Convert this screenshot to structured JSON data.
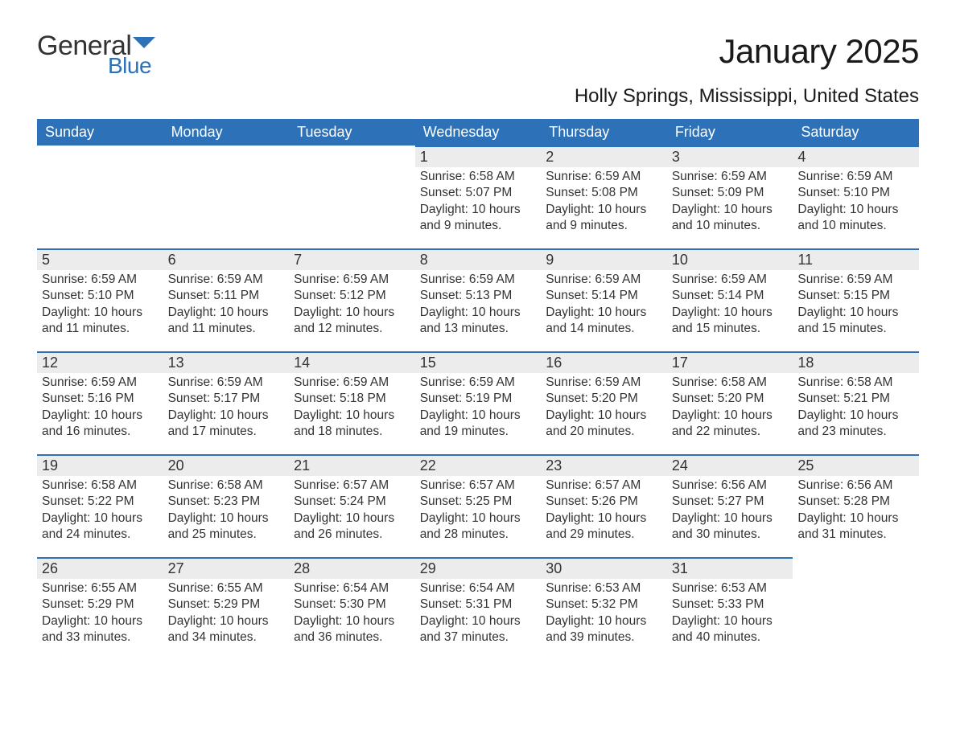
{
  "brand": {
    "word1": "General",
    "word2": "Blue",
    "accent": "#2d72b8"
  },
  "title": "January 2025",
  "location": "Holly Springs, Mississippi, United States",
  "colors": {
    "header_bg": "#2d72b8",
    "header_text": "#ffffff",
    "daynum_bg": "#ececec",
    "daynum_border": "#2d72b8",
    "body_text": "#333333",
    "page_bg": "#ffffff"
  },
  "typography": {
    "title_fontsize": 42,
    "location_fontsize": 24,
    "dow_fontsize": 18,
    "body_fontsize": 15.5
  },
  "layout": {
    "columns": 7,
    "rows": 5,
    "first_weekday": "Sunday",
    "leading_blanks": 3
  },
  "weekdays": [
    "Sunday",
    "Monday",
    "Tuesday",
    "Wednesday",
    "Thursday",
    "Friday",
    "Saturday"
  ],
  "labels": {
    "sunrise": "Sunrise:",
    "sunset": "Sunset:",
    "daylight": "Daylight:"
  },
  "days": [
    {
      "n": 1,
      "sunrise": "6:58 AM",
      "sunset": "5:07 PM",
      "daylight": "10 hours and 9 minutes."
    },
    {
      "n": 2,
      "sunrise": "6:59 AM",
      "sunset": "5:08 PM",
      "daylight": "10 hours and 9 minutes."
    },
    {
      "n": 3,
      "sunrise": "6:59 AM",
      "sunset": "5:09 PM",
      "daylight": "10 hours and 10 minutes."
    },
    {
      "n": 4,
      "sunrise": "6:59 AM",
      "sunset": "5:10 PM",
      "daylight": "10 hours and 10 minutes."
    },
    {
      "n": 5,
      "sunrise": "6:59 AM",
      "sunset": "5:10 PM",
      "daylight": "10 hours and 11 minutes."
    },
    {
      "n": 6,
      "sunrise": "6:59 AM",
      "sunset": "5:11 PM",
      "daylight": "10 hours and 11 minutes."
    },
    {
      "n": 7,
      "sunrise": "6:59 AM",
      "sunset": "5:12 PM",
      "daylight": "10 hours and 12 minutes."
    },
    {
      "n": 8,
      "sunrise": "6:59 AM",
      "sunset": "5:13 PM",
      "daylight": "10 hours and 13 minutes."
    },
    {
      "n": 9,
      "sunrise": "6:59 AM",
      "sunset": "5:14 PM",
      "daylight": "10 hours and 14 minutes."
    },
    {
      "n": 10,
      "sunrise": "6:59 AM",
      "sunset": "5:14 PM",
      "daylight": "10 hours and 15 minutes."
    },
    {
      "n": 11,
      "sunrise": "6:59 AM",
      "sunset": "5:15 PM",
      "daylight": "10 hours and 15 minutes."
    },
    {
      "n": 12,
      "sunrise": "6:59 AM",
      "sunset": "5:16 PM",
      "daylight": "10 hours and 16 minutes."
    },
    {
      "n": 13,
      "sunrise": "6:59 AM",
      "sunset": "5:17 PM",
      "daylight": "10 hours and 17 minutes."
    },
    {
      "n": 14,
      "sunrise": "6:59 AM",
      "sunset": "5:18 PM",
      "daylight": "10 hours and 18 minutes."
    },
    {
      "n": 15,
      "sunrise": "6:59 AM",
      "sunset": "5:19 PM",
      "daylight": "10 hours and 19 minutes."
    },
    {
      "n": 16,
      "sunrise": "6:59 AM",
      "sunset": "5:20 PM",
      "daylight": "10 hours and 20 minutes."
    },
    {
      "n": 17,
      "sunrise": "6:58 AM",
      "sunset": "5:20 PM",
      "daylight": "10 hours and 22 minutes."
    },
    {
      "n": 18,
      "sunrise": "6:58 AM",
      "sunset": "5:21 PM",
      "daylight": "10 hours and 23 minutes."
    },
    {
      "n": 19,
      "sunrise": "6:58 AM",
      "sunset": "5:22 PM",
      "daylight": "10 hours and 24 minutes."
    },
    {
      "n": 20,
      "sunrise": "6:58 AM",
      "sunset": "5:23 PM",
      "daylight": "10 hours and 25 minutes."
    },
    {
      "n": 21,
      "sunrise": "6:57 AM",
      "sunset": "5:24 PM",
      "daylight": "10 hours and 26 minutes."
    },
    {
      "n": 22,
      "sunrise": "6:57 AM",
      "sunset": "5:25 PM",
      "daylight": "10 hours and 28 minutes."
    },
    {
      "n": 23,
      "sunrise": "6:57 AM",
      "sunset": "5:26 PM",
      "daylight": "10 hours and 29 minutes."
    },
    {
      "n": 24,
      "sunrise": "6:56 AM",
      "sunset": "5:27 PM",
      "daylight": "10 hours and 30 minutes."
    },
    {
      "n": 25,
      "sunrise": "6:56 AM",
      "sunset": "5:28 PM",
      "daylight": "10 hours and 31 minutes."
    },
    {
      "n": 26,
      "sunrise": "6:55 AM",
      "sunset": "5:29 PM",
      "daylight": "10 hours and 33 minutes."
    },
    {
      "n": 27,
      "sunrise": "6:55 AM",
      "sunset": "5:29 PM",
      "daylight": "10 hours and 34 minutes."
    },
    {
      "n": 28,
      "sunrise": "6:54 AM",
      "sunset": "5:30 PM",
      "daylight": "10 hours and 36 minutes."
    },
    {
      "n": 29,
      "sunrise": "6:54 AM",
      "sunset": "5:31 PM",
      "daylight": "10 hours and 37 minutes."
    },
    {
      "n": 30,
      "sunrise": "6:53 AM",
      "sunset": "5:32 PM",
      "daylight": "10 hours and 39 minutes."
    },
    {
      "n": 31,
      "sunrise": "6:53 AM",
      "sunset": "5:33 PM",
      "daylight": "10 hours and 40 minutes."
    }
  ]
}
